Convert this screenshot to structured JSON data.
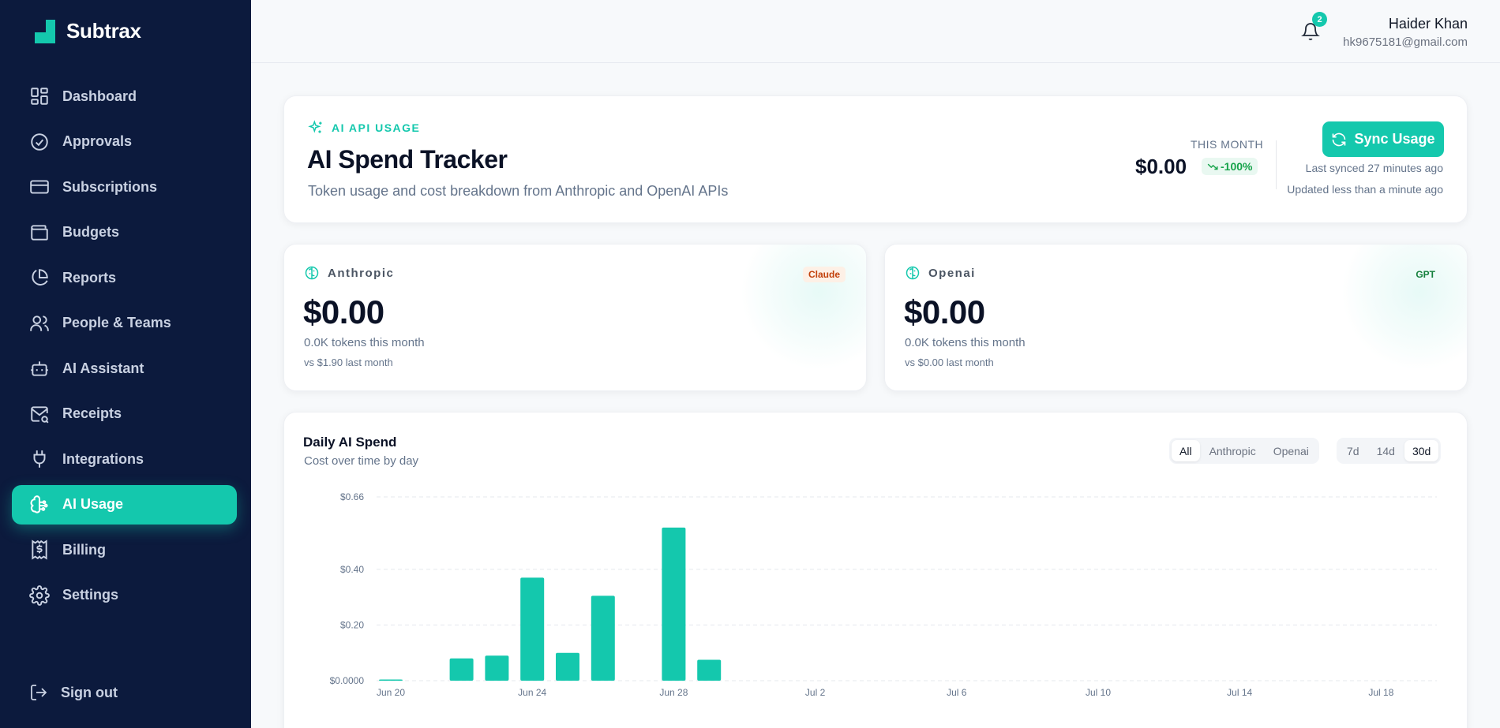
{
  "brand": {
    "name": "Subtrax"
  },
  "nav": {
    "items": [
      {
        "label": "Dashboard",
        "icon": "dashboard-icon",
        "active": false
      },
      {
        "label": "Approvals",
        "icon": "check-circle-icon",
        "active": false
      },
      {
        "label": "Subscriptions",
        "icon": "credit-card-icon",
        "active": false
      },
      {
        "label": "Budgets",
        "icon": "wallet-icon",
        "active": false
      },
      {
        "label": "Reports",
        "icon": "pie-chart-icon",
        "active": false
      },
      {
        "label": "People & Teams",
        "icon": "users-icon",
        "active": false
      },
      {
        "label": "AI Assistant",
        "icon": "bot-icon",
        "active": false
      },
      {
        "label": "Receipts",
        "icon": "mail-search-icon",
        "active": false
      },
      {
        "label": "Integrations",
        "icon": "plug-icon",
        "active": false
      },
      {
        "label": "AI Usage",
        "icon": "brain-icon",
        "active": true
      },
      {
        "label": "Billing",
        "icon": "receipt-dollar-icon",
        "active": false
      },
      {
        "label": "Settings",
        "icon": "gear-icon",
        "active": false
      }
    ],
    "signout": "Sign out"
  },
  "topbar": {
    "notification_count": "2",
    "user_name": "Haider Khan",
    "user_email": "hk9675181@gmail.com"
  },
  "hero": {
    "kicker": "AI API USAGE",
    "title": "AI Spend Tracker",
    "subtitle": "Token usage and cost breakdown from Anthropic and OpenAI APIs",
    "month_label": "THIS MONTH",
    "month_value": "$0.00",
    "month_change": "-100%",
    "sync_label": "Sync Usage",
    "last_synced": "Last synced 27 minutes ago",
    "updated": "Updated less than a minute ago"
  },
  "providers": [
    {
      "name": "Anthropic",
      "tag": "Claude",
      "amount": "$0.00",
      "tokens": "0.0K tokens this month",
      "vs": "vs $1.90 last month"
    },
    {
      "name": "Openai",
      "tag": "GPT",
      "amount": "$0.00",
      "tokens": "0.0K tokens this month",
      "vs": "vs $0.00 last month"
    }
  ],
  "chart": {
    "title": "Daily AI Spend",
    "subtitle": "Cost over time by day",
    "provider_filters": [
      "All",
      "Anthropic",
      "Openai"
    ],
    "provider_selected": "All",
    "range_filters": [
      "7d",
      "14d",
      "30d"
    ],
    "range_selected": "30d"
  },
  "colors": {
    "accent": "#14c8ad",
    "sidebar": "#0c1a3d"
  },
  "chart_data": {
    "type": "bar",
    "x_tick_labels": [
      "Jun 20",
      "Jun 24",
      "Jun 28",
      "Jul 2",
      "Jul 6",
      "Jul 10",
      "Jul 14",
      "Jul 18"
    ],
    "y_tick_labels": [
      "$0.0000",
      "$0.20",
      "$0.40",
      "$0.66"
    ],
    "y_ticks": [
      0,
      0.2,
      0.4,
      0.66
    ],
    "ylim": [
      0,
      0.66
    ],
    "categories": [
      "Jun 20",
      "Jun 21",
      "Jun 22",
      "Jun 23",
      "Jun 24",
      "Jun 25",
      "Jun 26",
      "Jun 27",
      "Jun 28",
      "Jun 29",
      "Jun 30",
      "Jul 1",
      "Jul 2",
      "Jul 3",
      "Jul 4",
      "Jul 5",
      "Jul 6",
      "Jul 7",
      "Jul 8",
      "Jul 9",
      "Jul 10",
      "Jul 11",
      "Jul 12",
      "Jul 13",
      "Jul 14",
      "Jul 15",
      "Jul 16",
      "Jul 17",
      "Jul 18",
      "Jul 19"
    ],
    "values": [
      0.003,
      0,
      0.08,
      0.09,
      0.37,
      0.1,
      0.305,
      0,
      0.55,
      0.075,
      0,
      0,
      0,
      0,
      0,
      0,
      0,
      0,
      0,
      0,
      0,
      0,
      0,
      0,
      0,
      0,
      0,
      0,
      0,
      0
    ],
    "grid": true,
    "legend": "none"
  }
}
